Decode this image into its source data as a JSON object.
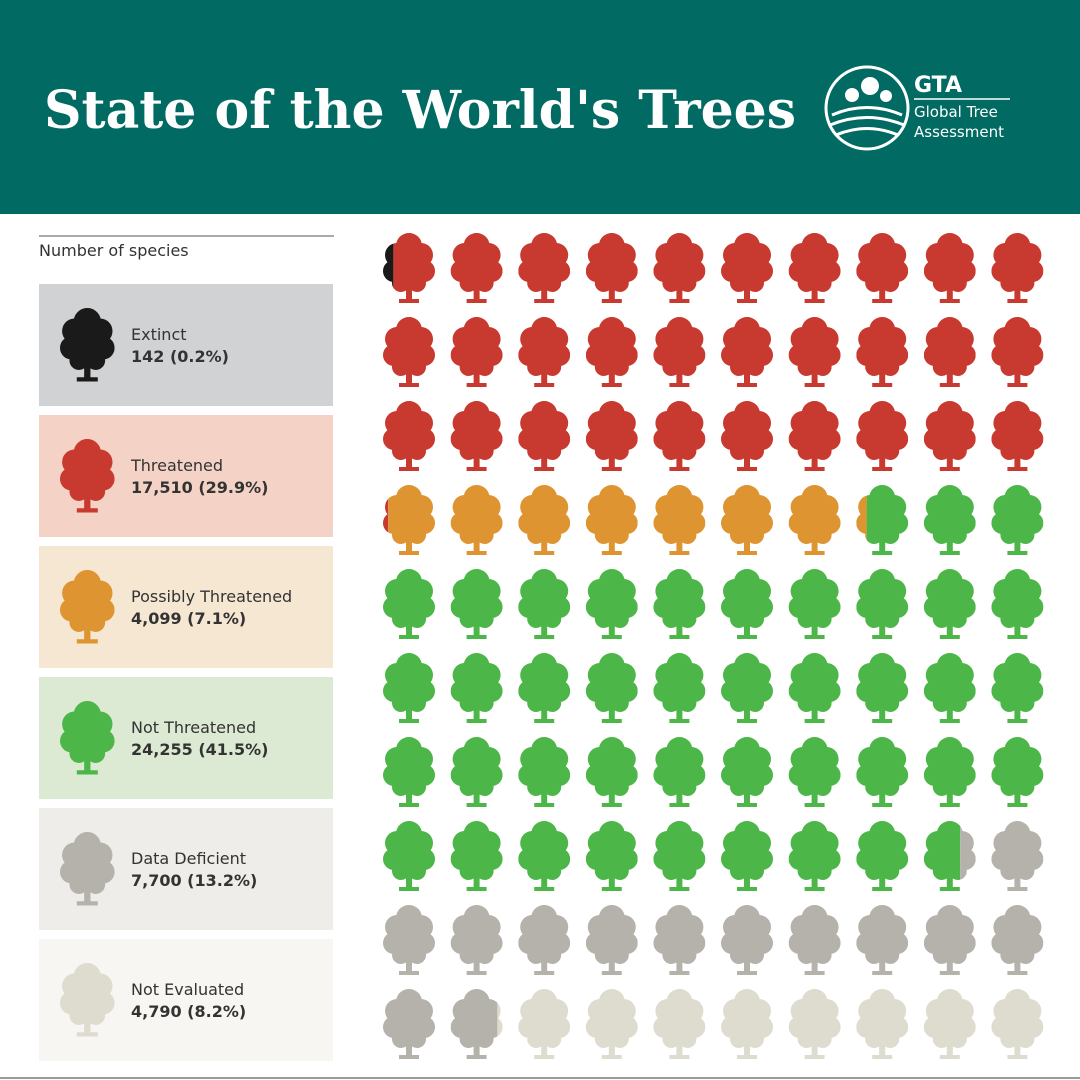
{
  "header": {
    "title": "State of the World's Trees",
    "logo": {
      "abbr": "GTA",
      "line1": "Global Tree",
      "line2": "Assessment"
    }
  },
  "chart_data": {
    "type": "waffle",
    "subtitle": "Number of species",
    "categories": [
      "Extinct",
      "Threatened",
      "Possibly Threatened",
      "Not Threatened",
      "Data Deficient",
      "Not Evaluated"
    ],
    "values": [
      142,
      17510,
      4099,
      24255,
      7700,
      4790
    ],
    "percentages": [
      0.2,
      29.9,
      7.1,
      41.5,
      13.2,
      8.2
    ],
    "value_labels": [
      "142 (0.2%)",
      "17,510 (29.9%)",
      "4,099 (7.1%)",
      "24,255 (41.5%)",
      "7,700 (13.2%)",
      "4,790 (8.2%)"
    ],
    "colors": [
      "#1a1a1a",
      "#c8392f",
      "#de9430",
      "#4cb748",
      "#b5b2ab",
      "#dedbcf"
    ],
    "box_colors": [
      "#d1d2d4",
      "#f4d3c6",
      "#f5e7d2",
      "#dcead3",
      "#eeede9",
      "#f7f6f2"
    ]
  }
}
